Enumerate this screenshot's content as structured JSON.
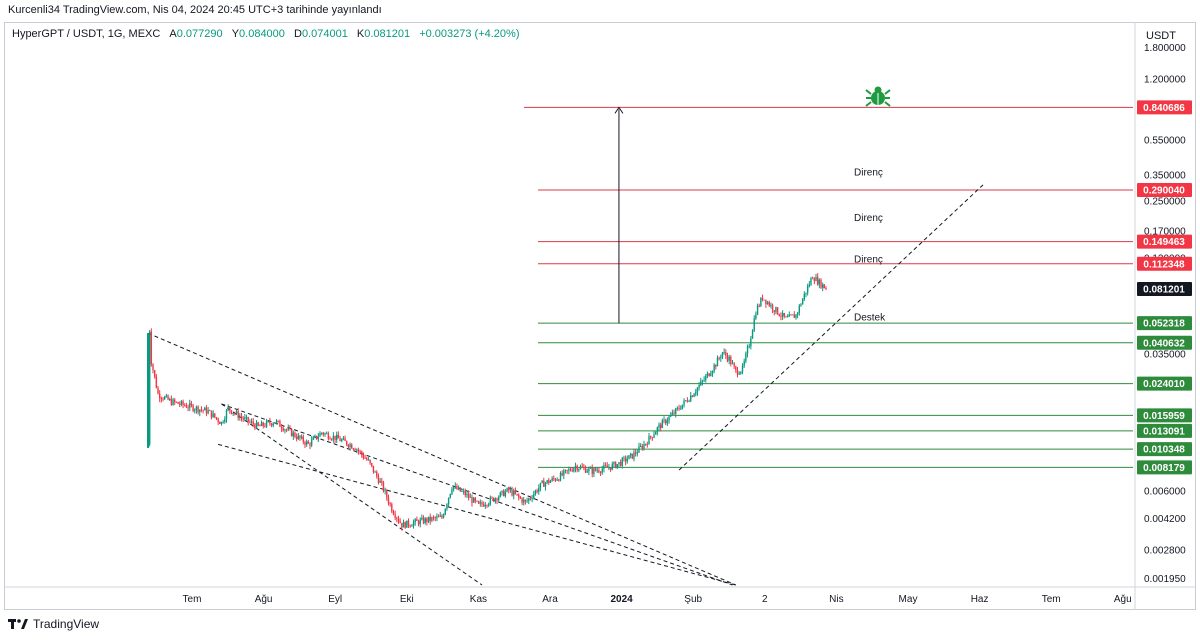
{
  "header": {
    "published": "Kurcenli34 TradingView.com, Nis 04, 2024 20:45 UTC+3 tarihinde yayınlandı"
  },
  "legend": {
    "symbol": "HyperGPT / USDT, 1G, MEXC",
    "open_label": "A",
    "open": "0.077290",
    "high_label": "Y",
    "high": "0.084000",
    "low_label": "D",
    "low": "0.074001",
    "close_label": "K",
    "close": "0.081201",
    "change": "+0.003273 (+4.20%)"
  },
  "currency": "USDT",
  "footer": {
    "brand": "TradingView"
  },
  "colors": {
    "red": "#f23645",
    "green": "#089981",
    "up": "#089981",
    "down": "#f23645",
    "resistance": "#d83a4a",
    "support": "#2e8b3c"
  },
  "icons": {
    "bug": "bug-icon",
    "logo": "tradingview-logo-icon"
  },
  "chart_data": {
    "type": "candlestick",
    "y_scale": "log",
    "ylim": [
      0.0018,
      1.9
    ],
    "x_labels": [
      "Tem",
      "Ağu",
      "Eyl",
      "Eki",
      "Kas",
      "Ara",
      "2024",
      "Şub",
      "2",
      "Nis",
      "May",
      "Haz",
      "Tem",
      "Ağu"
    ],
    "y_ticks": [
      "1.800000",
      "1.200000",
      "0.550000",
      "0.350000",
      "0.250000",
      "0.170000",
      "0.120000",
      "0.035000",
      "0.006000",
      "0.004200",
      "0.002800",
      "0.001950"
    ],
    "price_levels": [
      {
        "value": 0.840686,
        "label": "0.840686",
        "kind": "resistance"
      },
      {
        "value": 0.29004,
        "label": "0.290040",
        "kind": "resistance"
      },
      {
        "value": 0.149463,
        "label": "0.149463",
        "kind": "resistance"
      },
      {
        "value": 0.112348,
        "label": "0.112348",
        "kind": "resistance"
      },
      {
        "value": 0.052318,
        "label": "0.052318",
        "kind": "support"
      },
      {
        "value": 0.040632,
        "label": "0.040632",
        "kind": "support"
      },
      {
        "value": 0.02401,
        "label": "0.024010",
        "kind": "support"
      },
      {
        "value": 0.015959,
        "label": "0.015959",
        "kind": "support"
      },
      {
        "value": 0.013091,
        "label": "0.013091",
        "kind": "support"
      },
      {
        "value": 0.010348,
        "label": "0.010348",
        "kind": "support"
      },
      {
        "value": 0.008179,
        "label": "0.008179",
        "kind": "support"
      }
    ],
    "last_price": {
      "value": 0.081201,
      "label": "0.081201"
    },
    "annotations": [
      {
        "text": "Direnç",
        "value": 0.35
      },
      {
        "text": "Direnç",
        "value": 0.195
      },
      {
        "text": "Direnç",
        "value": 0.114
      },
      {
        "text": "Destek",
        "value": 0.054
      }
    ],
    "path": [
      [
        0,
        0.011
      ],
      [
        1,
        0.048
      ],
      [
        2,
        0.032
      ],
      [
        6,
        0.021
      ],
      [
        14,
        0.019
      ],
      [
        26,
        0.0178
      ],
      [
        36,
        0.0168
      ],
      [
        44,
        0.0145
      ],
      [
        48,
        0.0175
      ],
      [
        56,
        0.0155
      ],
      [
        66,
        0.0138
      ],
      [
        76,
        0.0148
      ],
      [
        86,
        0.0127
      ],
      [
        96,
        0.011
      ],
      [
        104,
        0.0128
      ],
      [
        114,
        0.0118
      ],
      [
        124,
        0.0106
      ],
      [
        132,
        0.0088
      ],
      [
        140,
        0.0065
      ],
      [
        146,
        0.0048
      ],
      [
        152,
        0.0039
      ],
      [
        164,
        0.0041
      ],
      [
        176,
        0.0043
      ],
      [
        182,
        0.0064
      ],
      [
        190,
        0.0058
      ],
      [
        198,
        0.005
      ],
      [
        206,
        0.0054
      ],
      [
        216,
        0.0061
      ],
      [
        226,
        0.0052
      ],
      [
        236,
        0.0066
      ],
      [
        246,
        0.0072
      ],
      [
        256,
        0.0083
      ],
      [
        266,
        0.0078
      ],
      [
        276,
        0.0082
      ],
      [
        282,
        0.0086
      ],
      [
        290,
        0.0095
      ],
      [
        298,
        0.0112
      ],
      [
        306,
        0.0138
      ],
      [
        316,
        0.0168
      ],
      [
        326,
        0.021
      ],
      [
        334,
        0.026
      ],
      [
        340,
        0.031
      ],
      [
        344,
        0.036
      ],
      [
        348,
        0.033
      ],
      [
        352,
        0.028
      ],
      [
        356,
        0.029
      ],
      [
        360,
        0.04
      ],
      [
        364,
        0.061
      ],
      [
        368,
        0.073
      ],
      [
        374,
        0.064
      ],
      [
        382,
        0.055
      ],
      [
        388,
        0.058
      ],
      [
        394,
        0.079
      ],
      [
        398,
        0.096
      ],
      [
        402,
        0.088
      ],
      [
        406,
        0.082
      ]
    ],
    "trendlines": [
      {
        "style": "dashed",
        "from": [
          0,
          0.046
        ],
        "to": [
          352,
          0.0018
        ]
      },
      {
        "style": "dashed",
        "from": [
          44,
          0.0185
        ],
        "to": [
          200,
          0.0018
        ]
      },
      {
        "style": "dashed",
        "from": [
          44,
          0.0185
        ],
        "to": [
          350,
          0.0018
        ]
      },
      {
        "style": "dashed",
        "from": [
          42,
          0.011
        ],
        "to": [
          352,
          0.0018
        ]
      },
      {
        "style": "dashed",
        "from": [
          318,
          0.0079
        ],
        "to": [
          500,
          0.31
        ]
      }
    ],
    "arrow": {
      "x": 282,
      "from": 0.052318,
      "to": 0.840686
    }
  }
}
